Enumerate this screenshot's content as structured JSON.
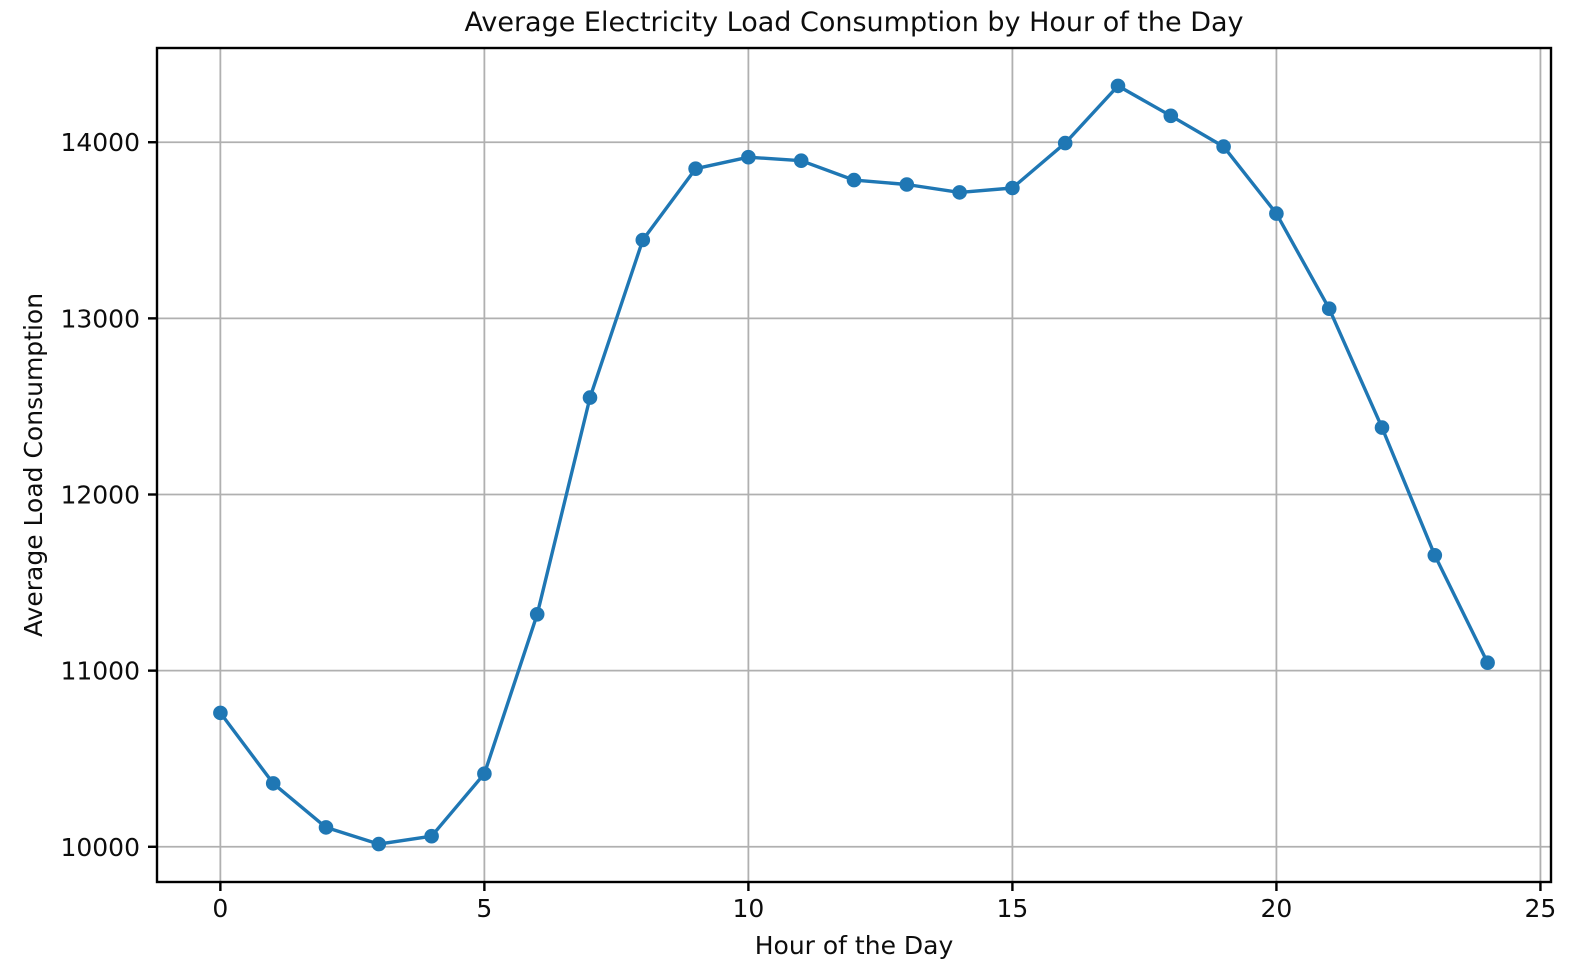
{
  "chart_data": {
    "type": "line",
    "title": "Average Electricity Load Consumption by Hour of the Day",
    "xlabel": "Hour of the Day",
    "ylabel": "Average Load Consumption",
    "x": [
      0,
      1,
      2,
      3,
      4,
      5,
      6,
      7,
      8,
      9,
      10,
      11,
      12,
      13,
      14,
      15,
      16,
      17,
      18,
      19,
      20,
      21,
      22,
      23,
      24
    ],
    "y": [
      10760,
      10360,
      10110,
      10015,
      10060,
      10415,
      11320,
      12550,
      13445,
      13850,
      13915,
      13895,
      13785,
      13760,
      13715,
      13740,
      13995,
      14320,
      14150,
      13975,
      13595,
      13055,
      12380,
      11655,
      11045
    ],
    "xticks": [
      0,
      5,
      10,
      15,
      20,
      25
    ],
    "yticks": [
      10000,
      11000,
      12000,
      13000,
      14000
    ],
    "xlim": [
      -1.2,
      25.2
    ],
    "ylim": [
      9800,
      14535
    ],
    "grid": true,
    "legend": "none",
    "marker": "circle",
    "line_color": "#1f77b4",
    "grid_color": "#b0b0b0",
    "spine_color": "#000000",
    "text_color": "#0d0d0d",
    "background_color": "#ffffff"
  }
}
